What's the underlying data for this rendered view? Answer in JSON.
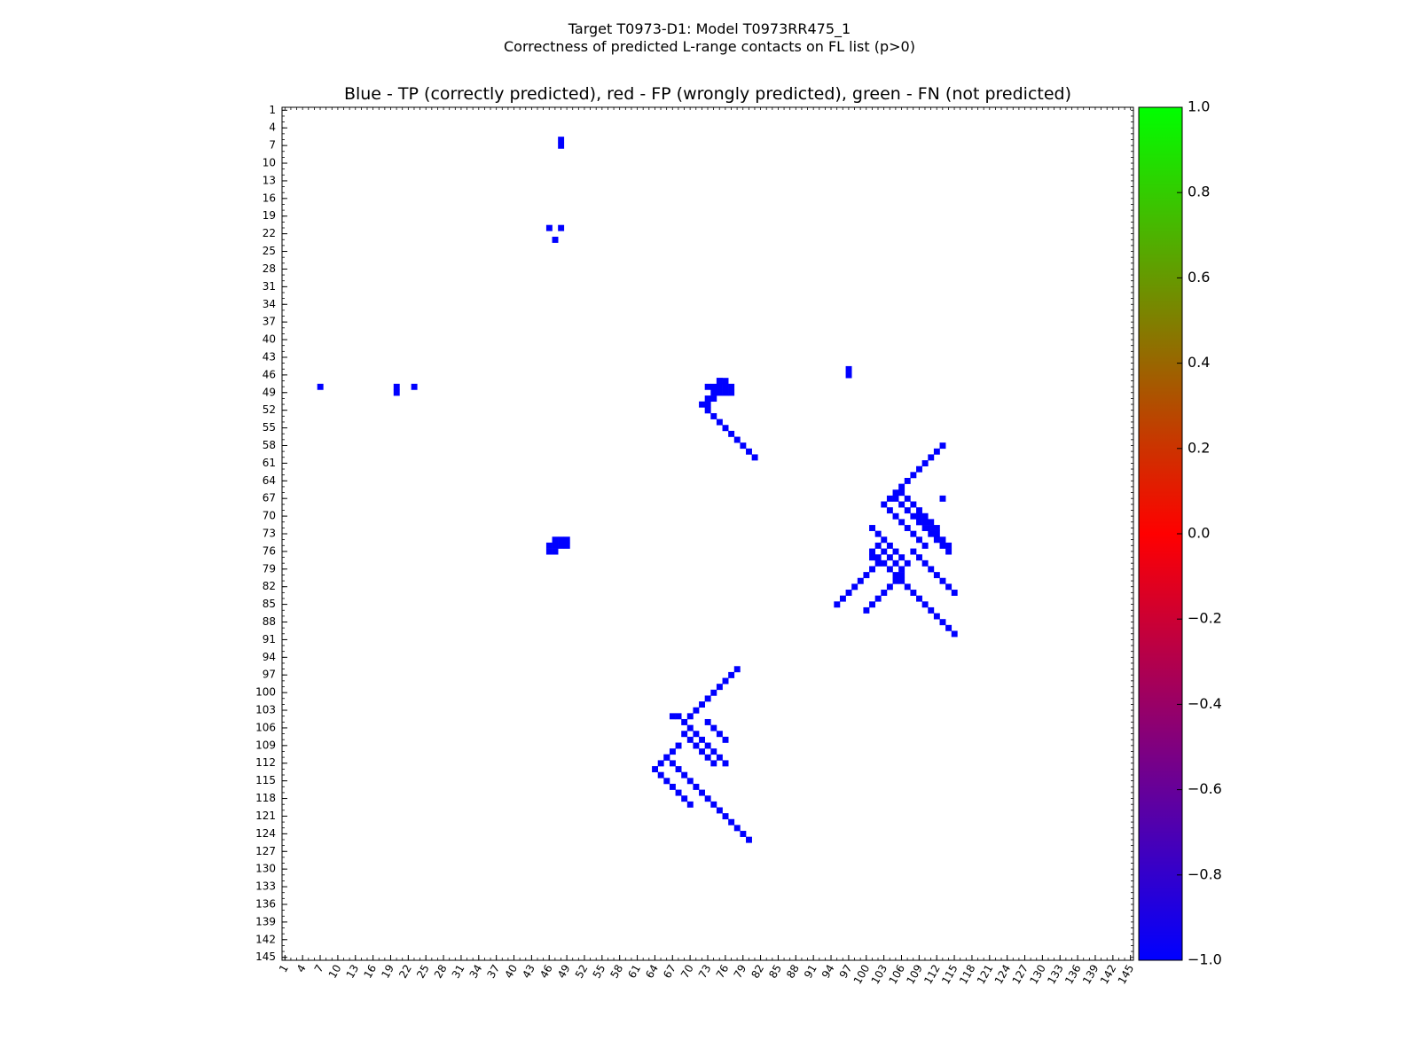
{
  "title_line1": "Target T0973-D1: Model T0973RR475_1",
  "title_line2": "Correctness of predicted L-range contacts on FL list (p>0)",
  "chart_data": {
    "type": "heatmap",
    "title": "Blue - TP (correctly predicted), red - FP (wrongly predicted), green - FN (not predicted)",
    "xlabel": "",
    "ylabel": "",
    "x_range": [
      1,
      145
    ],
    "y_range": [
      1,
      145
    ],
    "tick_labels": [
      "1",
      "4",
      "7",
      "10",
      "13",
      "16",
      "19",
      "22",
      "25",
      "28",
      "31",
      "34",
      "37",
      "40",
      "43",
      "46",
      "49",
      "52",
      "55",
      "58",
      "61",
      "64",
      "67",
      "70",
      "73",
      "76",
      "79",
      "82",
      "85",
      "88",
      "91",
      "94",
      "97",
      "100",
      "103",
      "106",
      "109",
      "112",
      "115",
      "118",
      "121",
      "124",
      "127",
      "130",
      "133",
      "136",
      "139",
      "142",
      "145"
    ],
    "colorbar": {
      "range": [
        -1.0,
        1.0
      ],
      "ticks": [
        "1.0",
        "0.8",
        "0.6",
        "0.4",
        "0.2",
        "0.0",
        "−0.2",
        "−0.4",
        "−0.6",
        "−0.8",
        "−1.0"
      ],
      "low_color": "#0000ff",
      "mid_color": "#ff0000",
      "high_color": "#00ff00"
    },
    "category_colors": {
      "TP": "#0000ff",
      "FP": "#ff0000",
      "FN": "#22cc00"
    },
    "cells": {
      "TP": [
        [
          48,
          6
        ],
        [
          48,
          7
        ],
        [
          46,
          21
        ],
        [
          48,
          21
        ],
        [
          47,
          23
        ],
        [
          7,
          48
        ],
        [
          20,
          48
        ],
        [
          20,
          49
        ],
        [
          23,
          48
        ],
        [
          49,
          74
        ],
        [
          48,
          75
        ],
        [
          47,
          75
        ],
        [
          46,
          76
        ],
        [
          75,
          47
        ],
        [
          76,
          47
        ],
        [
          76,
          48
        ],
        [
          77,
          48
        ],
        [
          77,
          49
        ],
        [
          73,
          48
        ],
        [
          74,
          48
        ],
        [
          75,
          48
        ],
        [
          74,
          49
        ],
        [
          75,
          49
        ],
        [
          74,
          50
        ],
        [
          73,
          50
        ],
        [
          73,
          51
        ],
        [
          97,
          45
        ],
        [
          97,
          46
        ],
        [
          113,
          67
        ],
        [
          103,
          68
        ],
        [
          104,
          69
        ],
        [
          105,
          70
        ],
        [
          106,
          71
        ],
        [
          107,
          72
        ],
        [
          108,
          73
        ],
        [
          109,
          74
        ],
        [
          110,
          75
        ],
        [
          108,
          76
        ],
        [
          109,
          77
        ],
        [
          110,
          78
        ],
        [
          111,
          79
        ],
        [
          112,
          80
        ],
        [
          113,
          81
        ],
        [
          114,
          82
        ],
        [
          115,
          83
        ],
        [
          105,
          67
        ],
        [
          106,
          68
        ],
        [
          107,
          69
        ],
        [
          108,
          70
        ],
        [
          109,
          71
        ],
        [
          110,
          72
        ],
        [
          111,
          73
        ],
        [
          112,
          74
        ],
        [
          113,
          75
        ],
        [
          114,
          76
        ],
        [
          104,
          67
        ],
        [
          105,
          66
        ],
        [
          106,
          65
        ],
        [
          107,
          64
        ],
        [
          108,
          63
        ],
        [
          109,
          62
        ],
        [
          110,
          61
        ],
        [
          111,
          60
        ],
        [
          112,
          59
        ],
        [
          113,
          58
        ],
        [
          101,
          72
        ],
        [
          102,
          73
        ],
        [
          103,
          74
        ],
        [
          104,
          75
        ],
        [
          105,
          76
        ],
        [
          106,
          77
        ],
        [
          107,
          78
        ],
        [
          102,
          75
        ],
        [
          103,
          76
        ],
        [
          104,
          77
        ],
        [
          105,
          78
        ],
        [
          106,
          79
        ],
        [
          106,
          80
        ],
        [
          105,
          81
        ],
        [
          104,
          82
        ],
        [
          103,
          83
        ],
        [
          102,
          84
        ],
        [
          101,
          85
        ],
        [
          100,
          86
        ],
        [
          101,
          79
        ],
        [
          100,
          80
        ],
        [
          99,
          81
        ],
        [
          98,
          82
        ],
        [
          97,
          83
        ],
        [
          96,
          84
        ],
        [
          95,
          85
        ],
        [
          102,
          78
        ],
        [
          101,
          77
        ],
        [
          67,
          104
        ],
        [
          68,
          104
        ],
        [
          69,
          105
        ],
        [
          70,
          106
        ],
        [
          71,
          107
        ],
        [
          72,
          108
        ],
        [
          73,
          109
        ],
        [
          74,
          110
        ],
        [
          75,
          111
        ],
        [
          76,
          112
        ],
        [
          69,
          107
        ],
        [
          70,
          108
        ],
        [
          71,
          109
        ],
        [
          72,
          110
        ],
        [
          73,
          111
        ],
        [
          74,
          112
        ],
        [
          70,
          104
        ],
        [
          71,
          103
        ],
        [
          72,
          102
        ],
        [
          73,
          101
        ],
        [
          74,
          100
        ],
        [
          75,
          99
        ],
        [
          76,
          98
        ],
        [
          77,
          97
        ],
        [
          78,
          96
        ],
        [
          73,
          105
        ],
        [
          74,
          106
        ],
        [
          75,
          107
        ],
        [
          76,
          108
        ],
        [
          68,
          109
        ],
        [
          67,
          110
        ],
        [
          66,
          111
        ],
        [
          65,
          112
        ],
        [
          64,
          113
        ],
        [
          65,
          114
        ],
        [
          66,
          115
        ],
        [
          67,
          116
        ],
        [
          68,
          117
        ],
        [
          69,
          118
        ],
        [
          70,
          119
        ],
        [
          109,
          70
        ],
        [
          110,
          71
        ],
        [
          111,
          72
        ],
        [
          112,
          73
        ],
        [
          113,
          74
        ],
        [
          114,
          75
        ],
        [
          106,
          66
        ],
        [
          107,
          67
        ],
        [
          108,
          68
        ],
        [
          109,
          69
        ],
        [
          110,
          70
        ],
        [
          111,
          71
        ],
        [
          112,
          72
        ],
        [
          101,
          76
        ],
        [
          102,
          77
        ],
        [
          103,
          78
        ],
        [
          104,
          79
        ],
        [
          105,
          80
        ],
        [
          106,
          81
        ],
        [
          107,
          82
        ],
        [
          108,
          83
        ],
        [
          109,
          84
        ],
        [
          110,
          85
        ],
        [
          111,
          86
        ],
        [
          112,
          87
        ],
        [
          113,
          88
        ],
        [
          114,
          89
        ],
        [
          115,
          90
        ],
        [
          75,
          47
        ],
        [
          76,
          49
        ],
        [
          46,
          75
        ],
        [
          49,
          75
        ],
        [
          48,
          74
        ],
        [
          47,
          76
        ],
        [
          47,
          74
        ],
        [
          72,
          51
        ],
        [
          73,
          52
        ],
        [
          74,
          53
        ],
        [
          75,
          54
        ],
        [
          76,
          55
        ],
        [
          77,
          56
        ],
        [
          78,
          57
        ],
        [
          79,
          58
        ],
        [
          80,
          59
        ],
        [
          81,
          60
        ],
        [
          66,
          111
        ],
        [
          67,
          112
        ],
        [
          68,
          113
        ],
        [
          69,
          114
        ],
        [
          70,
          115
        ],
        [
          71,
          116
        ],
        [
          72,
          117
        ],
        [
          73,
          118
        ],
        [
          74,
          119
        ],
        [
          75,
          120
        ],
        [
          76,
          121
        ],
        [
          77,
          122
        ],
        [
          78,
          123
        ],
        [
          79,
          124
        ],
        [
          80,
          125
        ]
      ],
      "FP": [],
      "FN": []
    }
  }
}
